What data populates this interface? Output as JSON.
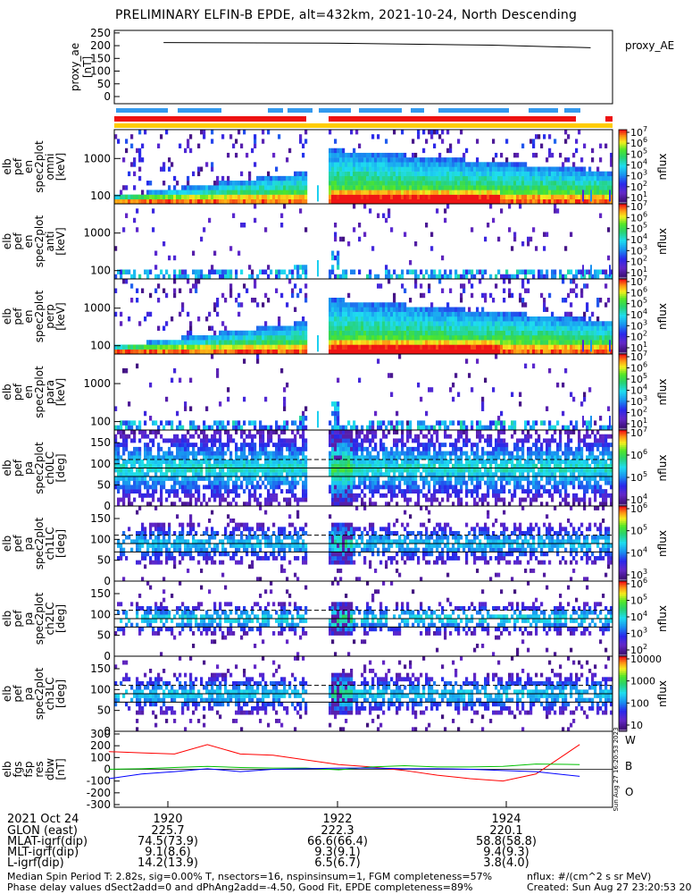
{
  "title": "PRELIMINARY ELFIN-B EPDE, alt=432km, 2021-10-24, North Descending",
  "colors": {
    "flux_low": "#3a0f72",
    "flux_mid": "#1fd9f0",
    "flux_high": "#ff1010",
    "line_red": "#ff0000",
    "line_green": "#00c000",
    "line_blue": "#0000ff",
    "science_bar": "#3399ee",
    "fgm_bar": "#ee1111",
    "completeness_bar": "#ffcc00"
  },
  "chart_data": [
    {
      "type": "line",
      "panel": "proxy_ae",
      "ylabel": "proxy_ae [nT]",
      "legend": "proxy_AE",
      "yticks": [
        "250",
        "200",
        "150",
        "100",
        "50",
        "0"
      ],
      "ylim": [
        0,
        260
      ],
      "x": [
        "19:18.0",
        "19:21.0",
        "19:24.0",
        "19:25.8"
      ],
      "values": [
        212,
        210,
        202,
        192
      ]
    },
    {
      "type": "heatmap",
      "panel": "pef_en_spec2plot_omni",
      "ylabel": [
        "elb",
        "pef",
        "en",
        "spec2plot",
        "omni",
        "[keV]"
      ],
      "yticks": [
        "1000",
        "100"
      ],
      "colorbar": [
        "10^7",
        "10^6",
        "10^5",
        "10^4",
        "10^3",
        "10^2",
        "10^1"
      ],
      "zlabel": "nflux",
      "energy_range_kev": [
        60,
        6000
      ]
    },
    {
      "type": "heatmap",
      "panel": "pef_en_spec2plot_anti",
      "ylabel": [
        "elb",
        "pef",
        "en",
        "spec2plot",
        "anti",
        "[keV]"
      ],
      "yticks": [
        "1000",
        "100"
      ],
      "colorbar": [
        "10^7",
        "10^6",
        "10^5",
        "10^4",
        "10^3",
        "10^2",
        "10^1"
      ],
      "zlabel": "nflux",
      "energy_range_kev": [
        60,
        6000
      ]
    },
    {
      "type": "heatmap",
      "panel": "pef_en_spec2plot_perp",
      "ylabel": [
        "elb",
        "pef",
        "en",
        "spec2plot",
        "perp",
        "[keV]"
      ],
      "yticks": [
        "1000",
        "100"
      ],
      "colorbar": [
        "10^7",
        "10^6",
        "10^5",
        "10^4",
        "10^3",
        "10^2",
        "10^1"
      ],
      "zlabel": "nflux",
      "energy_range_kev": [
        60,
        6000
      ]
    },
    {
      "type": "heatmap",
      "panel": "pef_en_spec2plot_para",
      "ylabel": [
        "elb",
        "pef",
        "en",
        "spec2plot",
        "para",
        "[keV]"
      ],
      "yticks": [
        "1000",
        "100"
      ],
      "colorbar": [
        "10^7",
        "10^6",
        "10^5",
        "10^4",
        "10^3",
        "10^2",
        "10^1"
      ],
      "zlabel": "nflux",
      "energy_range_kev": [
        60,
        6000
      ]
    },
    {
      "type": "heatmap",
      "panel": "pef_pa_spec2plot_ch0LC",
      "ylabel": [
        "elb",
        "pef",
        "pa",
        "spec2plot",
        "ch0LC",
        "[deg]"
      ],
      "yticks": [
        "150",
        "100",
        "50",
        "0"
      ],
      "ylim": [
        0,
        180
      ],
      "colorbar": [
        "10^7",
        "10^6",
        "10^5",
        "10^4"
      ],
      "zlabel": "nflux"
    },
    {
      "type": "heatmap",
      "panel": "pef_pa_spec2plot_ch1LC",
      "ylabel": [
        "elb",
        "pef",
        "pa",
        "spec2plot",
        "ch1LC",
        "[deg]"
      ],
      "yticks": [
        "150",
        "100",
        "50",
        "0"
      ],
      "ylim": [
        0,
        180
      ],
      "colorbar": [
        "10^6",
        "10^5",
        "10^4",
        "10^3"
      ],
      "zlabel": "nflux"
    },
    {
      "type": "heatmap",
      "panel": "pef_pa_spec2plot_ch2LC",
      "ylabel": [
        "elb",
        "pef",
        "pa",
        "spec2plot",
        "ch2LC",
        "[deg]"
      ],
      "yticks": [
        "150",
        "100",
        "50",
        "0"
      ],
      "ylim": [
        0,
        180
      ],
      "colorbar": [
        "10^6",
        "10^5",
        "10^4",
        "10^3",
        "10^2"
      ],
      "zlabel": "nflux"
    },
    {
      "type": "heatmap",
      "panel": "pef_pa_spec2plot_ch3LC",
      "ylabel": [
        "elb",
        "pef",
        "pa",
        "spec2plot",
        "ch3LC",
        "[deg]"
      ],
      "yticks": [
        "150",
        "100",
        "50",
        "0"
      ],
      "ylim": [
        0,
        180
      ],
      "colorbar": [
        "10000",
        "1000",
        "100",
        "10"
      ],
      "zlabel": "nflux"
    },
    {
      "type": "line",
      "panel": "fgs_res_dbw",
      "ylabel": [
        "elb",
        "fgs",
        "fsp",
        "res",
        "dbw",
        "[nT]"
      ],
      "yticks": [
        "300",
        "200",
        "100",
        "0",
        "-100",
        "-200",
        "-300"
      ],
      "ylim": [
        -300,
        300
      ],
      "x": [
        "19:17.0",
        "19:17.6",
        "19:18.2",
        "19:18.8",
        "19:19.4",
        "19:20.0",
        "19:20.6",
        "19:21.2",
        "19:21.8",
        "19:22.4",
        "19:23.0",
        "19:23.6",
        "19:24.2",
        "19:24.8",
        "19:25.6"
      ],
      "series": [
        {
          "name": "W",
          "values": [
            150,
            140,
            130,
            210,
            130,
            120,
            80,
            40,
            20,
            -10,
            -50,
            -80,
            -100,
            -40,
            210
          ]
        },
        {
          "name": "B",
          "values": [
            0,
            5,
            15,
            25,
            15,
            10,
            10,
            -5,
            20,
            30,
            20,
            20,
            25,
            45,
            40
          ]
        },
        {
          "name": "O",
          "values": [
            -80,
            -40,
            -20,
            5,
            -20,
            0,
            5,
            10,
            10,
            5,
            5,
            0,
            -10,
            -20,
            -60
          ]
        }
      ],
      "side_note": "Sun Aug 27 16:20:53 2023"
    }
  ],
  "time_axis": {
    "date": "2021 Oct 24",
    "ticks": [
      "1920",
      "1922",
      "1924"
    ]
  },
  "orbit_rows": [
    {
      "label": "GLON (east)",
      "values": [
        "225.7",
        "222.3",
        "220.1"
      ]
    },
    {
      "label": "MLAT-igrf(dip)",
      "values": [
        "74.5(73.9)",
        "66.6(66.4)",
        "58.8(58.8)"
      ]
    },
    {
      "label": "MLT-igrf(dip)",
      "values": [
        "9.1(8.6)",
        "9.3(9.1)",
        "9.4(9.3)"
      ]
    },
    {
      "label": "L-igrf(dip)",
      "values": [
        "14.2(13.9)",
        "6.5(6.7)",
        "3.8(4.0)"
      ]
    }
  ],
  "footer": {
    "line1": "Median Spin Period T: 2.82s, sig=0.00% T, nsectors=16, nspinsinsum=1, FGM completeness=57%",
    "line2": "Phase delay values dSect2add=0 and dPhAng2add=-4.50, Good Fit, EPDE completeness=89%",
    "units": "nflux: #/(cm^2 s sr MeV)",
    "created": "Created: Sun Aug 27 23:20:53 2023"
  }
}
